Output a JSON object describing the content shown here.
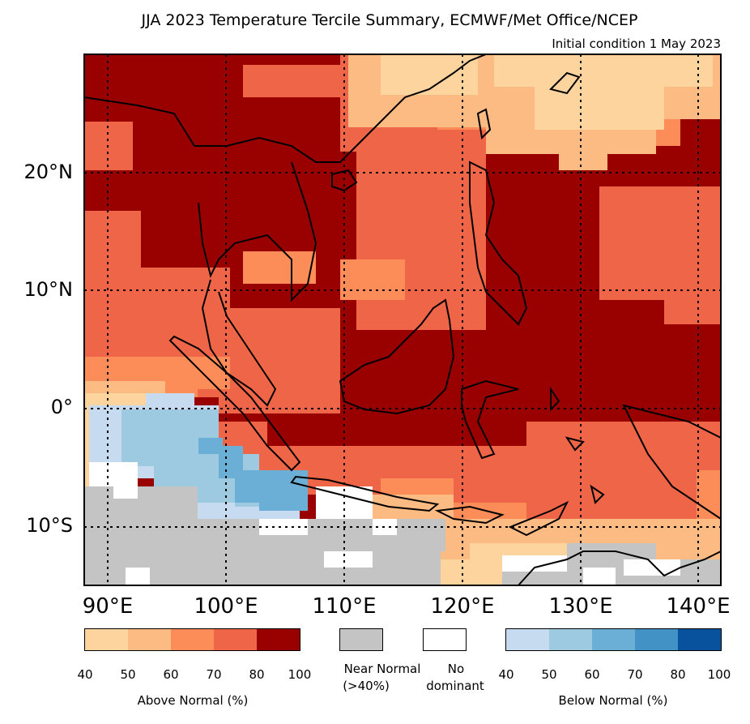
{
  "map": {
    "title": "JJA 2023 Temperature Tercile Summary, ECMWF/Met Office/NCEP",
    "subtitle": "Initial condition 1 May 2023",
    "lat_labels": [
      "20°N",
      "10°N",
      "0°",
      "10°S"
    ],
    "lon_labels": [
      "90°E",
      "100°E",
      "110°E",
      "120°E",
      "130°E",
      "140°E"
    ],
    "extent": {
      "lon": [
        88,
        142
      ],
      "lat": [
        -15,
        30
      ]
    }
  },
  "legend": {
    "above": {
      "title": "Above Normal (%)",
      "ticks": [
        "40",
        "50",
        "60",
        "70",
        "80",
        "100"
      ],
      "colors": [
        "#fdd49e",
        "#fdbb84",
        "#fc8d59",
        "#ef6548",
        "#990000"
      ]
    },
    "near_normal": {
      "label_line1": "Near Normal",
      "label_line2": "(>40%)",
      "color": "#c4c4c4"
    },
    "no_dominant": {
      "label_line1": "No",
      "label_line2": "dominant",
      "color": "#ffffff"
    },
    "below": {
      "title": "Below Normal (%)",
      "ticks": [
        "40",
        "50",
        "60",
        "70",
        "80",
        "100"
      ],
      "colors": [
        "#c6dbef",
        "#9ecae1",
        "#6baed6",
        "#4292c6",
        "#08519c"
      ]
    }
  }
}
